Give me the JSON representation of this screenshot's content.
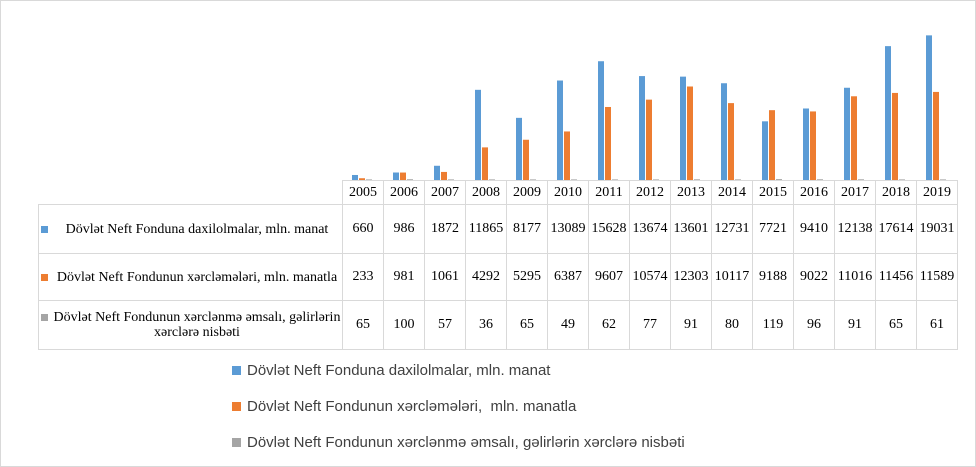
{
  "chart_data": {
    "type": "bar",
    "categories": [
      "2005",
      "2006",
      "2007",
      "2008",
      "2009",
      "2010",
      "2011",
      "2012",
      "2013",
      "2014",
      "2015",
      "2016",
      "2017",
      "2018",
      "2019"
    ],
    "ylim": [
      0,
      20000
    ],
    "grid": false,
    "legend": "bottom",
    "series": [
      {
        "name": "Dövlət Neft Fonduna daxilolmalar, mln. manat",
        "table_label": "Dövlət Neft Fonduna daxilolmalar, mln. manat",
        "color": "#5b9bd5",
        "values": [
          660,
          986,
          1872,
          11865,
          8177,
          13089,
          15628,
          13674,
          13601,
          12731,
          7721,
          9410,
          12138,
          17614,
          19031
        ]
      },
      {
        "name": "Dövlət Neft Fondunun xərcləmələri,  mln. manatla",
        "table_label": "Dövlət Neft Fondunun xərcləmələri, mln. manatla",
        "color": "#ed7d31",
        "values": [
          233,
          981,
          1061,
          4292,
          5295,
          6387,
          9607,
          10574,
          12303,
          10117,
          9188,
          9022,
          11016,
          11456,
          11589
        ]
      },
      {
        "name": "Dövlət Neft Fondunun xərclənmə əmsalı, gəlirlərin xərclərə nisbəti",
        "table_label": "Dövlət Neft Fondunun xərclənmə əmsalı, gəlirlərin xərclərə nisbəti",
        "color": "#a5a5a5",
        "values": [
          65,
          100,
          57,
          36,
          65,
          49,
          62,
          77,
          91,
          80,
          119,
          96,
          91,
          65,
          61
        ]
      }
    ]
  }
}
